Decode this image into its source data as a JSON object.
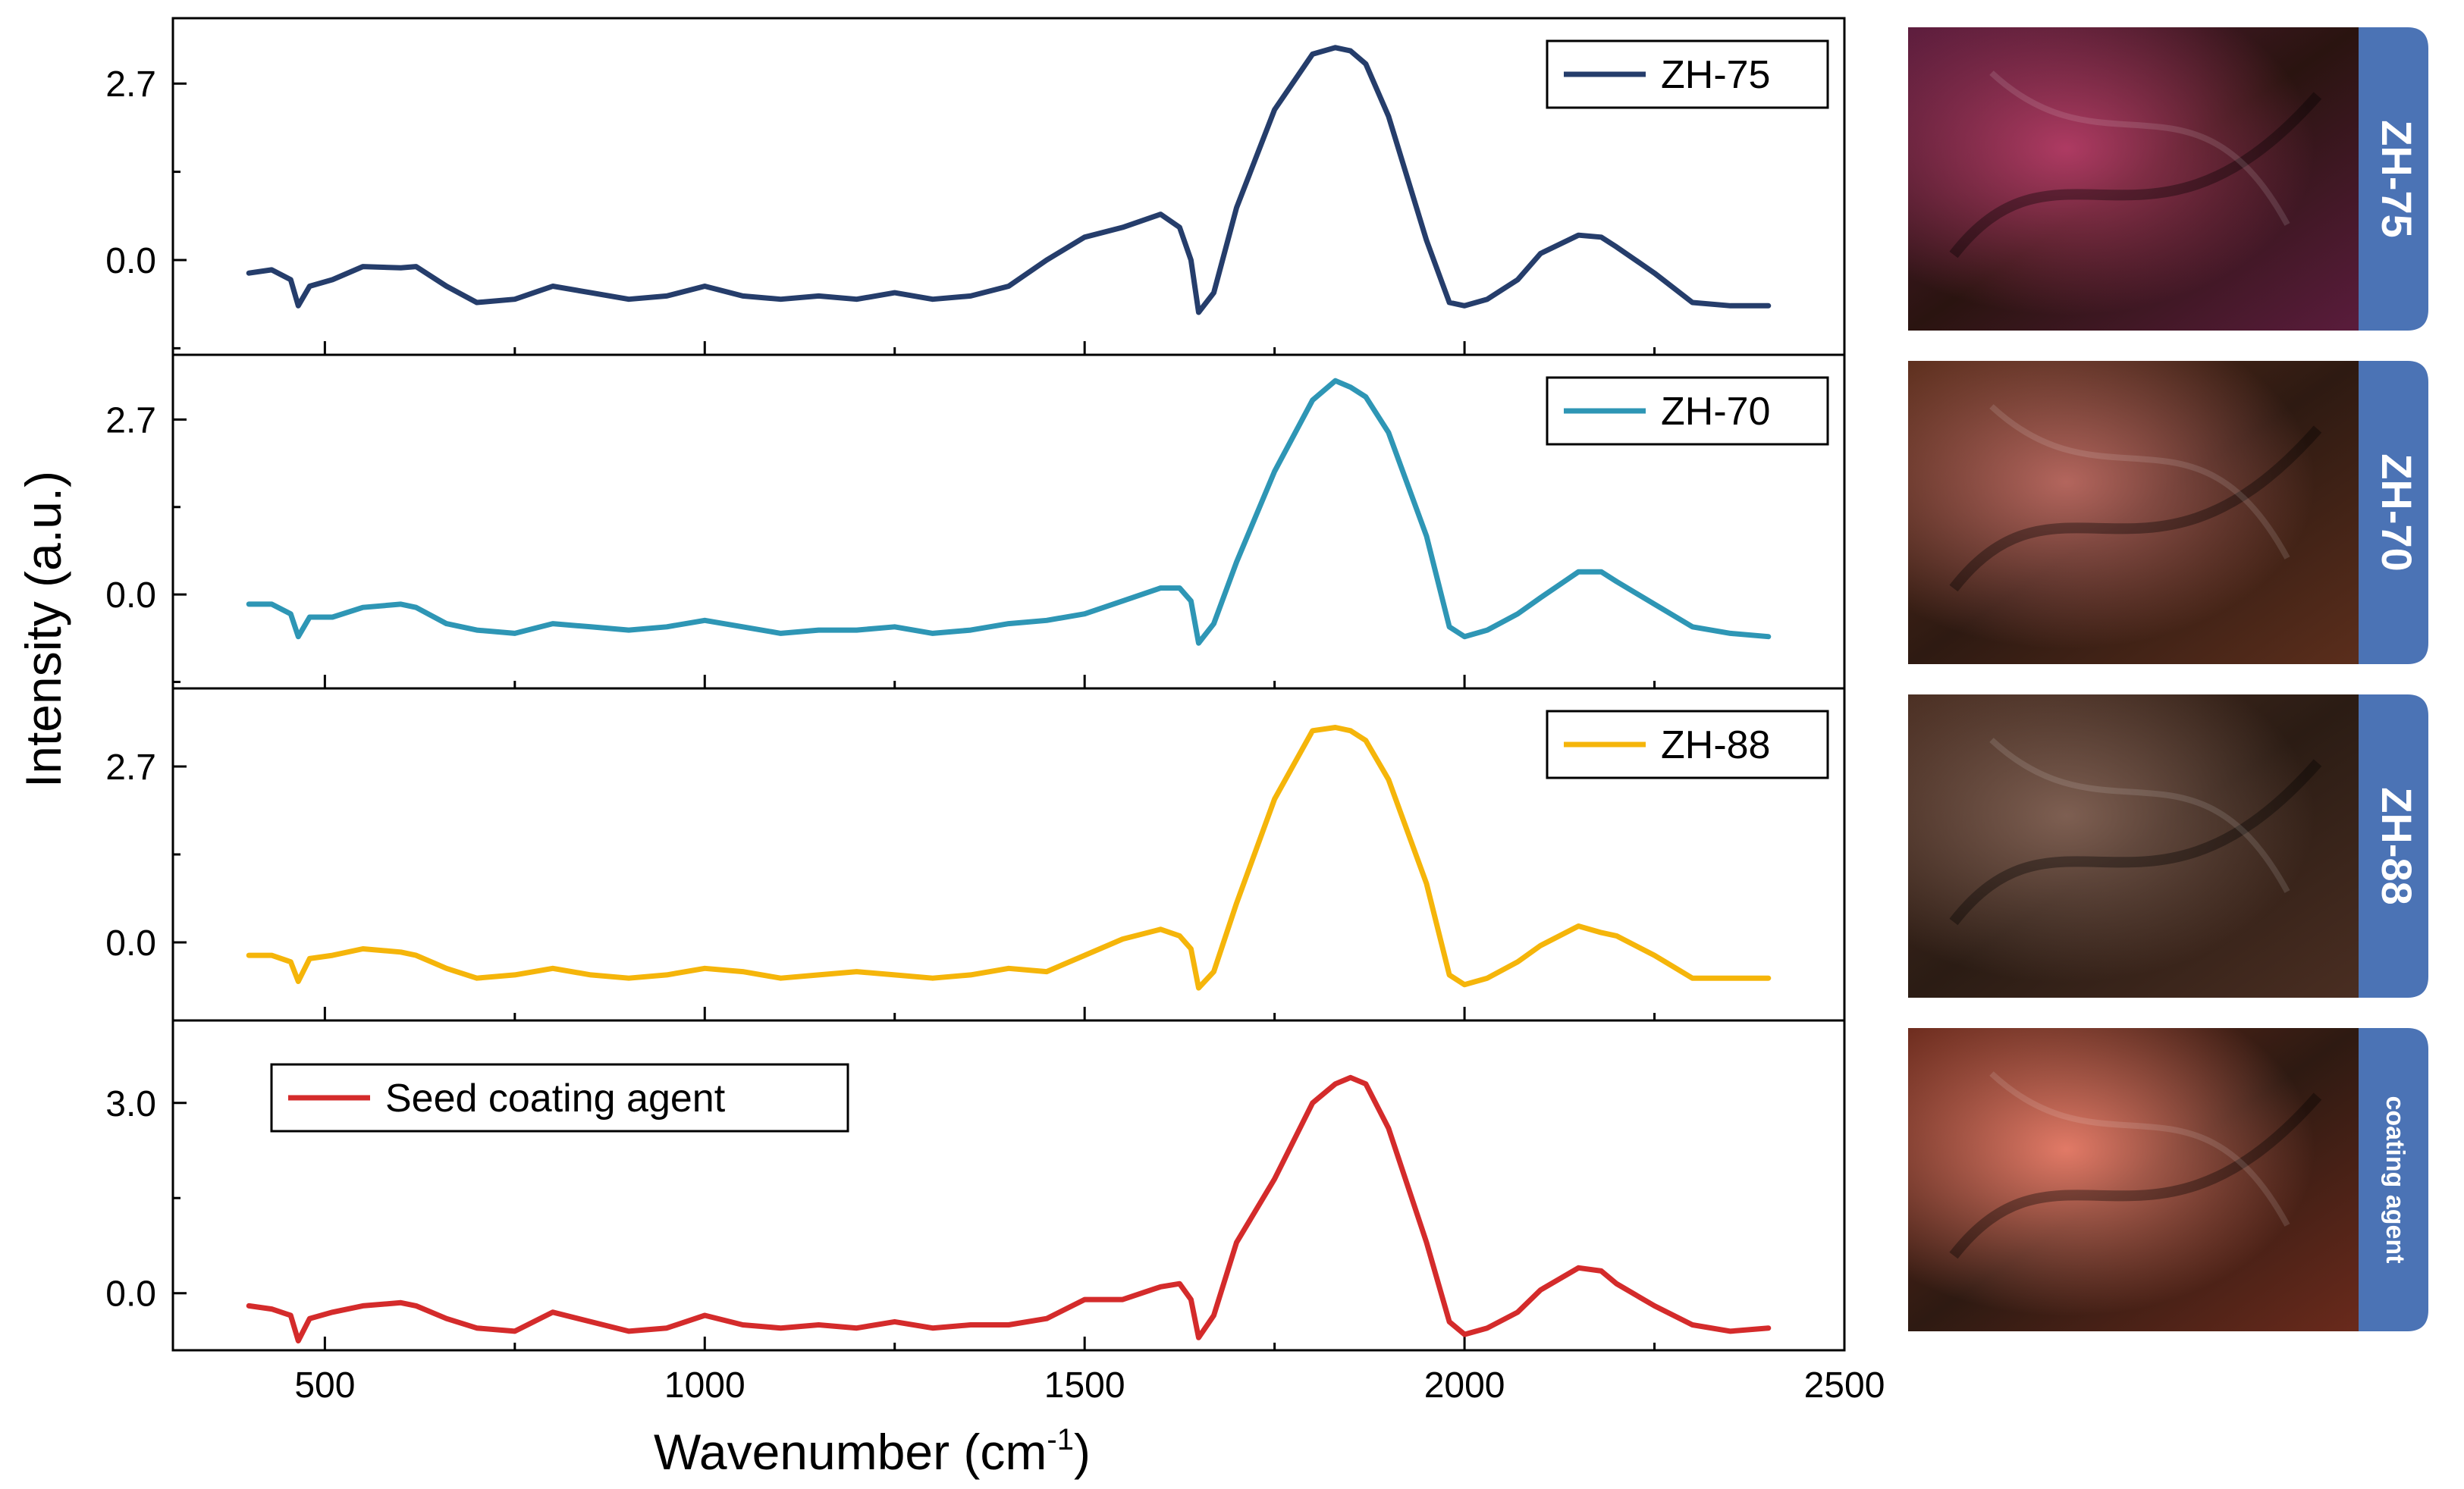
{
  "chart_data": {
    "type": "line",
    "xlabel": "Wavenumber (cm",
    "xlabel_sup": "-1",
    "xlabel_close": ")",
    "ylabel": "Intensity (a.u.)",
    "xlim": [
      300,
      2500
    ],
    "x_ticks": [
      500,
      1000,
      1500,
      2000,
      2500
    ],
    "x_tick_labels": [
      "500",
      "1000",
      "1500",
      "2000",
      "2500"
    ],
    "panels": [
      {
        "name": "ZH-75",
        "color": "#253d6b",
        "legend_position": "top-right",
        "ylim": [
          -1.45,
          3.7
        ],
        "y_ticks": [
          0.0,
          2.7
        ],
        "y_tick_labels": [
          "0.0",
          "2.7"
        ],
        "x": [
          400,
          430,
          455,
          465,
          480,
          510,
          550,
          600,
          620,
          660,
          700,
          750,
          800,
          850,
          900,
          950,
          1000,
          1050,
          1100,
          1150,
          1200,
          1250,
          1300,
          1350,
          1400,
          1450,
          1500,
          1550,
          1600,
          1625,
          1640,
          1650,
          1670,
          1700,
          1750,
          1800,
          1830,
          1850,
          1870,
          1900,
          1950,
          1980,
          2000,
          2030,
          2070,
          2100,
          2150,
          2180,
          2200,
          2250,
          2300,
          2350,
          2400
        ],
        "y": [
          -0.2,
          -0.15,
          -0.3,
          -0.7,
          -0.4,
          -0.3,
          -0.1,
          -0.12,
          -0.1,
          -0.4,
          -0.65,
          -0.6,
          -0.4,
          -0.5,
          -0.6,
          -0.55,
          -0.4,
          -0.55,
          -0.6,
          -0.55,
          -0.6,
          -0.5,
          -0.6,
          -0.55,
          -0.4,
          0.0,
          0.35,
          0.5,
          0.7,
          0.5,
          0.0,
          -0.8,
          -0.5,
          0.8,
          2.3,
          3.15,
          3.25,
          3.2,
          3.0,
          2.2,
          0.3,
          -0.65,
          -0.7,
          -0.6,
          -0.3,
          0.1,
          0.38,
          0.35,
          0.2,
          -0.2,
          -0.65,
          -0.7,
          -0.7
        ]
      },
      {
        "name": "ZH-70",
        "color": "#2e96b5",
        "legend_position": "top-right",
        "ylim": [
          -1.45,
          3.7
        ],
        "y_ticks": [
          0.0,
          2.7
        ],
        "y_tick_labels": [
          "0.0",
          "2.7"
        ],
        "x": [
          400,
          430,
          455,
          465,
          480,
          510,
          550,
          600,
          620,
          660,
          700,
          750,
          800,
          850,
          900,
          950,
          1000,
          1050,
          1100,
          1150,
          1200,
          1250,
          1300,
          1350,
          1400,
          1450,
          1500,
          1550,
          1600,
          1625,
          1640,
          1650,
          1670,
          1700,
          1750,
          1800,
          1830,
          1850,
          1870,
          1900,
          1950,
          1980,
          2000,
          2030,
          2070,
          2100,
          2150,
          2180,
          2200,
          2250,
          2300,
          2350,
          2400
        ],
        "y": [
          -0.15,
          -0.15,
          -0.3,
          -0.65,
          -0.35,
          -0.35,
          -0.2,
          -0.15,
          -0.2,
          -0.45,
          -0.55,
          -0.6,
          -0.45,
          -0.5,
          -0.55,
          -0.5,
          -0.4,
          -0.5,
          -0.6,
          -0.55,
          -0.55,
          -0.5,
          -0.6,
          -0.55,
          -0.45,
          -0.4,
          -0.3,
          -0.1,
          0.1,
          0.1,
          -0.1,
          -0.75,
          -0.45,
          0.5,
          1.9,
          3.0,
          3.3,
          3.2,
          3.05,
          2.5,
          0.9,
          -0.5,
          -0.65,
          -0.55,
          -0.3,
          -0.05,
          0.35,
          0.35,
          0.2,
          -0.15,
          -0.5,
          -0.6,
          -0.65
        ]
      },
      {
        "name": "ZH-88",
        "color": "#f5b50a",
        "legend_position": "top-right",
        "ylim": [
          -1.2,
          3.9
        ],
        "y_ticks": [
          0.0,
          2.7
        ],
        "y_tick_labels": [
          "0.0",
          "2.7"
        ],
        "x": [
          400,
          430,
          455,
          465,
          480,
          510,
          550,
          600,
          620,
          660,
          700,
          750,
          800,
          850,
          900,
          950,
          1000,
          1050,
          1100,
          1150,
          1200,
          1250,
          1300,
          1350,
          1400,
          1450,
          1500,
          1550,
          1600,
          1625,
          1640,
          1650,
          1670,
          1700,
          1750,
          1800,
          1830,
          1850,
          1870,
          1900,
          1950,
          1980,
          2000,
          2030,
          2070,
          2100,
          2150,
          2180,
          2200,
          2250,
          2300,
          2350,
          2400
        ],
        "y": [
          -0.2,
          -0.2,
          -0.3,
          -0.6,
          -0.25,
          -0.2,
          -0.1,
          -0.15,
          -0.2,
          -0.4,
          -0.55,
          -0.5,
          -0.4,
          -0.5,
          -0.55,
          -0.5,
          -0.4,
          -0.45,
          -0.55,
          -0.5,
          -0.45,
          -0.5,
          -0.55,
          -0.5,
          -0.4,
          -0.45,
          -0.2,
          0.05,
          0.2,
          0.1,
          -0.1,
          -0.7,
          -0.45,
          0.6,
          2.2,
          3.25,
          3.3,
          3.25,
          3.1,
          2.5,
          0.9,
          -0.5,
          -0.65,
          -0.55,
          -0.3,
          -0.05,
          0.25,
          0.15,
          0.1,
          -0.2,
          -0.55,
          -0.55,
          -0.55
        ]
      },
      {
        "name": "Seed coating agent",
        "color": "#d42b2b",
        "legend_position": "top-left",
        "ylim": [
          -0.9,
          4.3
        ],
        "y_ticks": [
          0.0,
          3.0
        ],
        "y_tick_labels": [
          "0.0",
          "3.0"
        ],
        "x": [
          400,
          430,
          455,
          465,
          480,
          510,
          550,
          600,
          620,
          660,
          700,
          750,
          800,
          850,
          900,
          950,
          1000,
          1050,
          1100,
          1150,
          1200,
          1250,
          1300,
          1350,
          1400,
          1450,
          1500,
          1550,
          1600,
          1625,
          1640,
          1650,
          1670,
          1700,
          1750,
          1800,
          1830,
          1850,
          1870,
          1900,
          1950,
          1980,
          2000,
          2030,
          2070,
          2100,
          2150,
          2180,
          2200,
          2250,
          2300,
          2350,
          2400
        ],
        "y": [
          -0.2,
          -0.25,
          -0.35,
          -0.75,
          -0.4,
          -0.3,
          -0.2,
          -0.15,
          -0.2,
          -0.4,
          -0.55,
          -0.6,
          -0.3,
          -0.45,
          -0.6,
          -0.55,
          -0.35,
          -0.5,
          -0.55,
          -0.5,
          -0.55,
          -0.45,
          -0.55,
          -0.5,
          -0.5,
          -0.4,
          -0.1,
          -0.1,
          0.1,
          0.15,
          -0.1,
          -0.7,
          -0.35,
          0.8,
          1.8,
          3.0,
          3.3,
          3.4,
          3.3,
          2.6,
          0.8,
          -0.45,
          -0.65,
          -0.55,
          -0.3,
          0.05,
          0.4,
          0.35,
          0.15,
          -0.2,
          -0.5,
          -0.6,
          -0.55
        ]
      }
    ]
  },
  "images": [
    {
      "label": "ZH-75",
      "tab_color": "#4b73b5",
      "tone_a": "#5a1c3c",
      "tone_b": "#c3416f",
      "tone_c": "#2a1410"
    },
    {
      "label": "ZH-70",
      "tab_color": "#4b73b5",
      "tone_a": "#5b2e1c",
      "tone_b": "#c9726a",
      "tone_c": "#2e1a12"
    },
    {
      "label": "ZH-88",
      "tab_color": "#4b73b5",
      "tone_a": "#4a2e22",
      "tone_b": "#8b6a5c",
      "tone_c": "#2b1c14"
    },
    {
      "label": "coating agent",
      "tab_color": "#4b73b5",
      "tone_a": "#6a2a1c",
      "tone_b": "#ff8a75",
      "tone_c": "#2e1a12"
    }
  ]
}
